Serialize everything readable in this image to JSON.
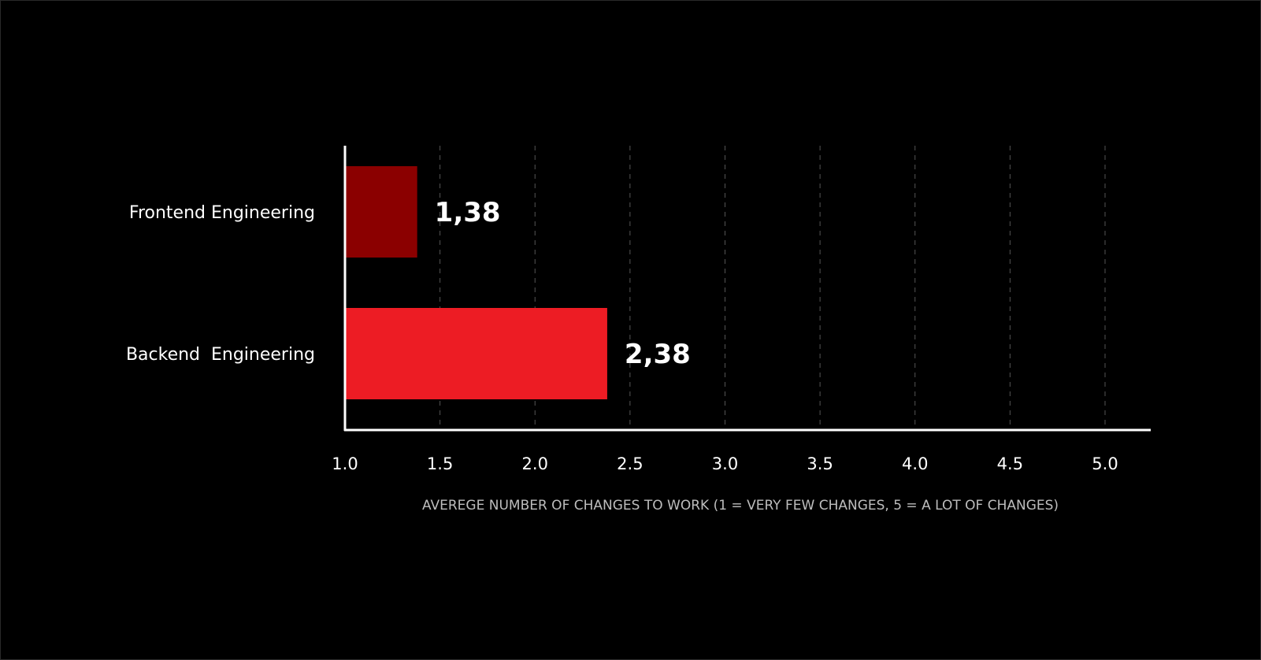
{
  "chart_data": {
    "type": "bar",
    "orientation": "horizontal",
    "categories": [
      "Frontend Engineering",
      "Backend  Engineering"
    ],
    "values": [
      1.38,
      2.38
    ],
    "value_labels": [
      "1,38",
      "2,38"
    ],
    "bar_colors": [
      "#8b0000",
      "#ed1c24"
    ],
    "xlabel": "AVEREGE NUMBER OF CHANGES TO WORK (1 = VERY FEW CHANGES, 5 = A LOT OF CHANGES)",
    "ylabel": "",
    "title": "",
    "xlim": [
      1.0,
      5.0
    ],
    "xticks": [
      "1.0",
      "1.5",
      "2.0",
      "2.5",
      "3.0",
      "3.5",
      "4.0",
      "4.5",
      "5.0"
    ],
    "grid": "vertical dashed",
    "legend": "none"
  },
  "colors": {
    "background": "#000000",
    "axis": "#ffffff",
    "grid": "#555555",
    "text": "#ffffff",
    "axis_title": "#bdbdbd"
  }
}
